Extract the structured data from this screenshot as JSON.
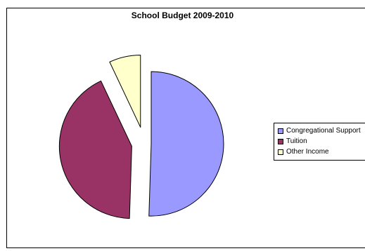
{
  "chart_data": {
    "type": "pie",
    "title": "School Budget 2009-2010",
    "series": [
      {
        "name": "Congregational Support",
        "value": 50.5,
        "color": "#9999ff"
      },
      {
        "name": "Tuition",
        "value": 42.5,
        "color": "#993366"
      },
      {
        "name": "Other Income",
        "value": 7.0,
        "color": "#ffffcc"
      }
    ],
    "exploded": true,
    "legend_position": "right"
  }
}
